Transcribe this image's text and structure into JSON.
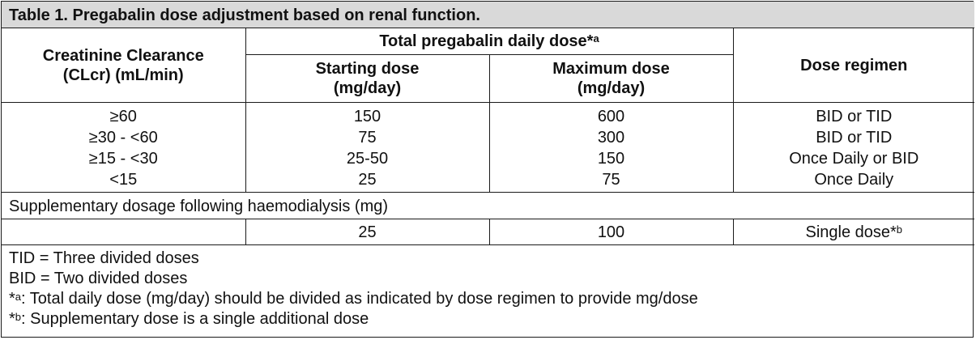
{
  "table": {
    "caption": "Table 1. Pregabalin dose adjustment based on renal function.",
    "headers": {
      "clcr": "Creatinine Clearance (CLcr) (mL/min)",
      "total_dose": "Total pregabalin daily dose*",
      "total_dose_sup": "a",
      "starting_dose": "Starting dose (mg/day)",
      "maximum_dose": "Maximum dose (mg/day)",
      "regimen": "Dose regimen"
    },
    "rows": [
      {
        "clcr": "≥60",
        "starting": "150",
        "maximum": "600",
        "regimen": "BID or TID"
      },
      {
        "clcr": "≥30 - <60",
        "starting": "75",
        "maximum": "300",
        "regimen": "BID or TID"
      },
      {
        "clcr": "≥15 - <30",
        "starting": "25-50",
        "maximum": "150",
        "regimen": "Once Daily or BID"
      },
      {
        "clcr": "<15",
        "starting": "25",
        "maximum": "75",
        "regimen": "Once Daily"
      }
    ],
    "supplementary": {
      "label": "Supplementary dosage following haemodialysis (mg)",
      "clcr": "",
      "starting": "25",
      "maximum": "100",
      "regimen": "Single dose*",
      "regimen_sup": "b"
    },
    "notes": {
      "tid": "TID = Three divided doses",
      "bid": "BID = Two divided doses",
      "a_prefix": "*",
      "a_sup": "a",
      "a_text": ": Total daily dose (mg/day) should be divided as indicated by dose regimen to provide mg/dose",
      "b_prefix": "*",
      "b_sup": "b",
      "b_text": ": Supplementary dose is a single additional dose"
    }
  }
}
